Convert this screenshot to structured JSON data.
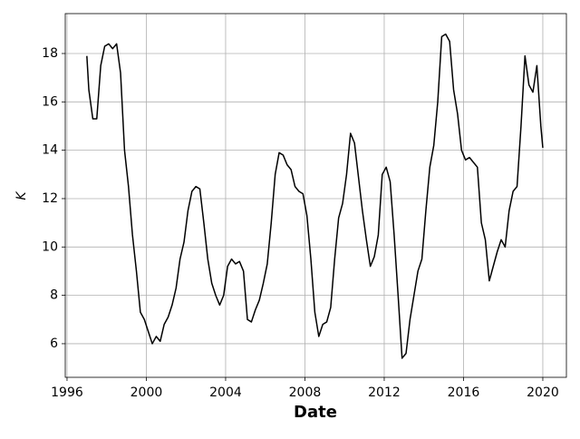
{
  "chart_data": {
    "type": "line",
    "xlabel": "Date",
    "ylabel": "K",
    "x": [
      1997.0,
      1997.1,
      1997.3,
      1997.5,
      1997.7,
      1997.9,
      1998.1,
      1998.3,
      1998.5,
      1998.7,
      1998.9,
      1999.1,
      1999.3,
      1999.5,
      1999.7,
      1999.9,
      2000.1,
      2000.3,
      2000.5,
      2000.7,
      2000.9,
      2001.1,
      2001.3,
      2001.5,
      2001.7,
      2001.9,
      2002.1,
      2002.3,
      2002.5,
      2002.7,
      2002.9,
      2003.1,
      2003.3,
      2003.5,
      2003.7,
      2003.9,
      2004.1,
      2004.3,
      2004.5,
      2004.7,
      2004.9,
      2005.1,
      2005.3,
      2005.5,
      2005.7,
      2005.9,
      2006.1,
      2006.3,
      2006.5,
      2006.7,
      2006.9,
      2007.1,
      2007.3,
      2007.5,
      2007.7,
      2007.9,
      2008.1,
      2008.3,
      2008.5,
      2008.7,
      2008.9,
      2009.1,
      2009.3,
      2009.5,
      2009.7,
      2009.9,
      2010.1,
      2010.3,
      2010.5,
      2010.7,
      2010.9,
      2011.1,
      2011.3,
      2011.5,
      2011.7,
      2011.9,
      2012.1,
      2012.3,
      2012.5,
      2012.7,
      2012.9,
      2013.1,
      2013.3,
      2013.5,
      2013.7,
      2013.9,
      2014.1,
      2014.3,
      2014.5,
      2014.7,
      2014.9,
      2015.1,
      2015.3,
      2015.5,
      2015.7,
      2015.9,
      2016.1,
      2016.3,
      2016.5,
      2016.7,
      2016.9,
      2017.1,
      2017.3,
      2017.5,
      2017.7,
      2017.9,
      2018.1,
      2018.3,
      2018.5,
      2018.7,
      2018.9,
      2019.1,
      2019.3,
      2019.5,
      2019.7,
      2019.9,
      2020.0
    ],
    "series": [
      {
        "name": "K",
        "color": "#000000",
        "values": [
          17.9,
          16.5,
          15.3,
          15.3,
          17.5,
          18.3,
          18.4,
          18.2,
          18.4,
          17.2,
          14.0,
          12.5,
          10.5,
          9.0,
          7.3,
          7.0,
          6.5,
          6.0,
          6.3,
          6.1,
          6.8,
          7.1,
          7.6,
          8.3,
          9.5,
          10.2,
          11.5,
          12.3,
          12.5,
          12.4,
          11.0,
          9.5,
          8.5,
          8.0,
          7.6,
          8.0,
          9.2,
          9.5,
          9.3,
          9.4,
          9.0,
          7.0,
          6.9,
          7.4,
          7.8,
          8.5,
          9.3,
          11.0,
          13.0,
          13.9,
          13.8,
          13.4,
          13.2,
          12.5,
          12.3,
          12.2,
          11.3,
          9.5,
          7.3,
          6.3,
          6.8,
          6.9,
          7.5,
          9.5,
          11.2,
          11.8,
          13.0,
          14.7,
          14.3,
          12.9,
          11.5,
          10.3,
          9.2,
          9.6,
          10.5,
          13.0,
          13.3,
          12.7,
          10.5,
          8.0,
          5.4,
          5.6,
          7.0,
          8.0,
          9.0,
          9.5,
          11.5,
          13.3,
          14.2,
          16.0,
          18.7,
          18.8,
          18.5,
          16.5,
          15.5,
          14.0,
          13.6,
          13.7,
          13.5,
          13.3,
          11.0,
          10.3,
          8.6,
          9.2,
          9.8,
          10.3,
          10.0,
          11.5,
          12.3,
          12.5,
          15.0,
          17.9,
          16.7,
          16.4,
          17.5,
          15.0,
          14.1
        ]
      }
    ],
    "xlim": [
      1995.91,
      2021.19
    ],
    "xticks": [
      1996,
      2000,
      2004,
      2008,
      2012,
      2016,
      2020
    ],
    "ylim": [
      4.61,
      19.65
    ],
    "yticks": [
      6,
      8,
      10,
      12,
      14,
      16,
      18
    ],
    "grid": true
  }
}
